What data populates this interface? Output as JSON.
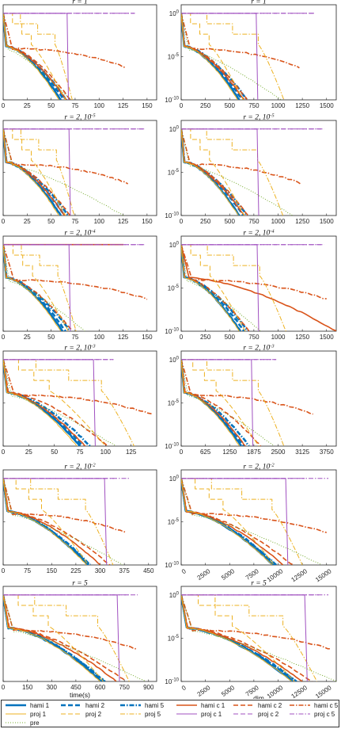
{
  "colors": {
    "hami": "#0072BD",
    "proj": "#EDB120",
    "hamic": "#D95319",
    "projc": "#A050C0",
    "pre": "#77AC30"
  },
  "chart_data": [
    {
      "type": "line",
      "panel": "time",
      "title": "r = 1",
      "xlabel": "",
      "ylabel": "",
      "xlim": [
        0,
        160
      ],
      "xticks": [
        "0",
        "25",
        "50",
        "75",
        "100",
        "125",
        "150"
      ],
      "yscale": "log",
      "ylim": [
        1e-10,
        10
      ],
      "yticks": [
        "10^0",
        "10^-5",
        "10^-10"
      ],
      "show_yticks": false,
      "series": [
        {
          "name": "hami 1",
          "end": 60
        },
        {
          "name": "hami 2",
          "end": 63
        },
        {
          "name": "hami 5",
          "end": 66
        },
        {
          "name": "hami c 1",
          "end": 66
        },
        {
          "name": "hami c 2",
          "end": 70
        },
        {
          "name": "hami c 5",
          "end": 128
        },
        {
          "name": "proj 1",
          "end": 58
        },
        {
          "name": "proj 2",
          "end": 65
        },
        {
          "name": "proj 5",
          "end": 72
        },
        {
          "name": "proj c 1",
          "end": 68
        },
        {
          "name": "proj c 2",
          "end": 140
        },
        {
          "name": "proj c 5",
          "end": 140
        },
        {
          "name": "pre",
          "end": 70
        }
      ]
    },
    {
      "type": "line",
      "panel": "dim",
      "title": "r = 1",
      "xlabel": "",
      "ylabel": "",
      "xlim": [
        0,
        1600
      ],
      "xticks": [
        "0",
        "250",
        "500",
        "750",
        "1000",
        "1250",
        "1500"
      ],
      "yscale": "log",
      "ylim": [
        1e-10,
        10
      ],
      "yticks": [
        "10^0",
        "10^-5",
        "10^-10"
      ],
      "show_yticks": true,
      "series": [
        {
          "name": "hami 1",
          "end": 600
        },
        {
          "name": "hami 2",
          "end": 630
        },
        {
          "name": "hami 5",
          "end": 680
        },
        {
          "name": "hami c 1",
          "end": 650
        },
        {
          "name": "hami c 2",
          "end": 680
        },
        {
          "name": "hami c 5",
          "end": 1220
        },
        {
          "name": "proj 1",
          "end": 580
        },
        {
          "name": "proj 2",
          "end": 640
        },
        {
          "name": "proj 5",
          "end": 1060
        },
        {
          "name": "proj c 1",
          "end": 790
        },
        {
          "name": "proj c 2",
          "end": 1400
        },
        {
          "name": "proj c 5",
          "end": 1400
        },
        {
          "name": "pre",
          "end": 1030
        }
      ]
    },
    {
      "type": "line",
      "panel": "time",
      "title": "r = 2, 10^-5",
      "xlabel": "",
      "ylabel": "",
      "xlim": [
        0,
        160
      ],
      "xticks": [
        "0",
        "25",
        "50",
        "75",
        "100",
        "125",
        "150"
      ],
      "yscale": "log",
      "ylim": [
        1e-10,
        10
      ],
      "yticks": [
        "10^0",
        "10^-5",
        "10^-10"
      ],
      "show_yticks": false,
      "series": [
        {
          "name": "hami 1",
          "end": 60
        },
        {
          "name": "hami 2",
          "end": 64
        },
        {
          "name": "hami 5",
          "end": 68
        },
        {
          "name": "hami c 1",
          "end": 64
        },
        {
          "name": "hami c 2",
          "end": 70
        },
        {
          "name": "hami c 5",
          "end": 130
        },
        {
          "name": "proj 1",
          "end": 58
        },
        {
          "name": "proj 2",
          "end": 65
        },
        {
          "name": "proj 5",
          "end": 74
        },
        {
          "name": "proj c 1",
          "end": 70
        },
        {
          "name": "proj c 2",
          "end": 150
        },
        {
          "name": "proj c 5",
          "end": 150
        },
        {
          "name": "pre",
          "end": 125
        }
      ]
    },
    {
      "type": "line",
      "panel": "dim",
      "title": "r = 2, 10^-5",
      "xlabel": "",
      "ylabel": "",
      "xlim": [
        0,
        1600
      ],
      "xticks": [
        "0",
        "250",
        "500",
        "750",
        "1000",
        "1250",
        "1500"
      ],
      "yscale": "log",
      "ylim": [
        1e-10,
        10
      ],
      "yticks": [
        "10^0",
        "10^-5",
        "10^-10"
      ],
      "show_yticks": true,
      "series": [
        {
          "name": "hami 1",
          "end": 600
        },
        {
          "name": "hami 2",
          "end": 640
        },
        {
          "name": "hami 5",
          "end": 680
        },
        {
          "name": "hami c 1",
          "end": 650
        },
        {
          "name": "hami c 2",
          "end": 690
        },
        {
          "name": "hami c 5",
          "end": 1230
        },
        {
          "name": "proj 1",
          "end": 590
        },
        {
          "name": "proj 2",
          "end": 650
        },
        {
          "name": "proj 5",
          "end": 1050
        },
        {
          "name": "proj c 1",
          "end": 800
        },
        {
          "name": "proj c 2",
          "end": 1500
        },
        {
          "name": "proj c 5",
          "end": 1500
        },
        {
          "name": "pre",
          "end": 1150
        }
      ]
    },
    {
      "type": "line",
      "panel": "time",
      "title": "r = 2, 10^-4",
      "xlabel": "",
      "ylabel": "",
      "xlim": [
        0,
        160
      ],
      "xticks": [
        "0",
        "25",
        "50",
        "75",
        "100",
        "125",
        "150"
      ],
      "yscale": "log",
      "ylim": [
        1e-10,
        10
      ],
      "yticks": [
        "10^0",
        "10^-5",
        "10^-10"
      ],
      "show_yticks": false,
      "series": [
        {
          "name": "hami 1",
          "end": 62
        },
        {
          "name": "hami 2",
          "end": 65
        },
        {
          "name": "hami 5",
          "end": 70
        },
        {
          "name": "hami c 1",
          "end": 128
        },
        {
          "name": "hami c 2",
          "end": 72
        },
        {
          "name": "hami c 5",
          "end": 150
        },
        {
          "name": "proj 1",
          "end": 60
        },
        {
          "name": "proj 2",
          "end": 68
        },
        {
          "name": "proj 5",
          "end": 76
        },
        {
          "name": "proj c 1",
          "end": 70
        },
        {
          "name": "proj c 2",
          "end": 150
        },
        {
          "name": "proj c 5",
          "end": 150
        },
        {
          "name": "pre",
          "end": 85
        }
      ]
    },
    {
      "type": "line",
      "panel": "dim",
      "title": "r = 2, 10^-4",
      "xlabel": "",
      "ylabel": "",
      "xlim": [
        0,
        1600
      ],
      "xticks": [
        "0",
        "250",
        "500",
        "750",
        "1000",
        "1250",
        "1500"
      ],
      "yscale": "log",
      "ylim": [
        1e-10,
        10
      ],
      "yticks": [
        "10^0",
        "10^-5",
        "10^-10"
      ],
      "show_yticks": true,
      "series": [
        {
          "name": "hami 1",
          "end": 610
        },
        {
          "name": "hami 2",
          "end": 650
        },
        {
          "name": "hami 5",
          "end": 690
        },
        {
          "name": "hami c 1",
          "end": 1600
        },
        {
          "name": "hami c 2",
          "end": 700
        },
        {
          "name": "hami c 5",
          "end": 1500
        },
        {
          "name": "proj 1",
          "end": 600
        },
        {
          "name": "proj 2",
          "end": 660
        },
        {
          "name": "proj 5",
          "end": 1080
        },
        {
          "name": "proj c 1",
          "end": 800
        },
        {
          "name": "proj c 2",
          "end": 1500
        },
        {
          "name": "proj c 5",
          "end": 1500
        },
        {
          "name": "pre",
          "end": 820
        }
      ]
    },
    {
      "type": "line",
      "panel": "time",
      "title": "r = 2, 10^-3",
      "xlabel": "",
      "ylabel": "",
      "xlim": [
        0,
        150
      ],
      "xticks": [
        "0",
        "25",
        "50",
        "75",
        "100",
        "125"
      ],
      "yscale": "log",
      "ylim": [
        1e-10,
        10
      ],
      "yticks": [
        "10^0",
        "10^-5",
        "10^-10"
      ],
      "show_yticks": false,
      "series": [
        {
          "name": "hami 1",
          "end": 75
        },
        {
          "name": "hami 2",
          "end": 78
        },
        {
          "name": "hami 5",
          "end": 85
        },
        {
          "name": "hami c 1",
          "end": 80
        },
        {
          "name": "hami c 2",
          "end": 102
        },
        {
          "name": "hami c 5",
          "end": 145
        },
        {
          "name": "proj 1",
          "end": 72
        },
        {
          "name": "proj 2",
          "end": 100
        },
        {
          "name": "proj 5",
          "end": 128
        },
        {
          "name": "proj c 1",
          "end": 90
        },
        {
          "name": "proj c 2",
          "end": 110
        },
        {
          "name": "proj c 5",
          "end": 110
        },
        {
          "name": "pre",
          "end": 110
        }
      ]
    },
    {
      "type": "line",
      "panel": "dim",
      "title": "r = 2, 10^-3",
      "xlabel": "",
      "ylabel": "",
      "xlim": [
        0,
        4000
      ],
      "xticks": [
        "0",
        "625",
        "1250",
        "1875",
        "2500",
        "3125",
        "3750"
      ],
      "yscale": "log",
      "ylim": [
        1e-10,
        10
      ],
      "yticks": [
        "10^0",
        "10^-5",
        "10^-10"
      ],
      "show_yticks": true,
      "series": [
        {
          "name": "hami 1",
          "end": 1550
        },
        {
          "name": "hami 2",
          "end": 1620
        },
        {
          "name": "hami 5",
          "end": 1750
        },
        {
          "name": "hami c 1",
          "end": 1650
        },
        {
          "name": "hami c 2",
          "end": 2050
        },
        {
          "name": "hami c 5",
          "end": 3400
        },
        {
          "name": "proj 1",
          "end": 1500
        },
        {
          "name": "proj 2",
          "end": 2000
        },
        {
          "name": "proj 5",
          "end": 2650
        },
        {
          "name": "proj c 1",
          "end": 1850
        },
        {
          "name": "proj c 2",
          "end": 2500
        },
        {
          "name": "proj c 5",
          "end": 2500
        },
        {
          "name": "pre",
          "end": 2400
        }
      ]
    },
    {
      "type": "line",
      "panel": "time",
      "title": "r = 2, 10^-2",
      "xlabel": "",
      "ylabel": "",
      "xlim": [
        0,
        475
      ],
      "xticks": [
        "0",
        "75",
        "150",
        "225",
        "300",
        "375",
        "450"
      ],
      "yscale": "log",
      "ylim": [
        1e-10,
        10
      ],
      "yticks": [
        "10^0",
        "10^-5",
        "10^-10"
      ],
      "show_yticks": false,
      "series": [
        {
          "name": "hami 1",
          "end": 262
        },
        {
          "name": "hami 2",
          "end": 266
        },
        {
          "name": "hami 5",
          "end": 270
        },
        {
          "name": "hami c 1",
          "end": 300
        },
        {
          "name": "hami c 2",
          "end": 330
        },
        {
          "name": "hami c 5",
          "end": 380
        },
        {
          "name": "proj 1",
          "end": 258
        },
        {
          "name": "proj 2",
          "end": 264
        },
        {
          "name": "proj 5",
          "end": 340
        },
        {
          "name": "proj c 1",
          "end": 320
        },
        {
          "name": "proj c 2",
          "end": 350
        },
        {
          "name": "proj c 5",
          "end": 400
        },
        {
          "name": "pre",
          "end": 370
        }
      ]
    },
    {
      "type": "line",
      "panel": "dim",
      "title": "r = 2, 10^-2",
      "xlabel": "",
      "ylabel": "",
      "xlim": [
        0,
        16000
      ],
      "xticks": [
        "0",
        "2500",
        "5000",
        "7500",
        "10000",
        "12500",
        "15000"
      ],
      "yscale": "log",
      "ylim": [
        1e-10,
        10
      ],
      "yticks": [
        "10^0",
        "10^-5",
        "10^-10"
      ],
      "show_yticks": true,
      "series": [
        {
          "name": "hami 1",
          "end": 9500
        },
        {
          "name": "hami 2",
          "end": 9700
        },
        {
          "name": "hami 5",
          "end": 9800
        },
        {
          "name": "hami c 1",
          "end": 10500
        },
        {
          "name": "hami c 2",
          "end": 11500
        },
        {
          "name": "hami c 5",
          "end": 15000
        },
        {
          "name": "proj 1",
          "end": 9400
        },
        {
          "name": "proj 2",
          "end": 9600
        },
        {
          "name": "proj 5",
          "end": 12500
        },
        {
          "name": "proj c 1",
          "end": 11000
        },
        {
          "name": "proj c 2",
          "end": 13000
        },
        {
          "name": "proj c 5",
          "end": 15500
        },
        {
          "name": "pre",
          "end": 14500
        }
      ]
    },
    {
      "type": "line",
      "panel": "time",
      "title": "r = 5",
      "xlabel": "time(s)",
      "ylabel": "",
      "xlim": [
        0,
        950
      ],
      "xticks": [
        "0",
        "150",
        "300",
        "450",
        "600",
        "750",
        "900"
      ],
      "yscale": "log",
      "ylim": [
        1e-10,
        10
      ],
      "yticks": [
        "10^0",
        "10^-5",
        "10^-10"
      ],
      "show_yticks": false,
      "series": [
        {
          "name": "hami 1",
          "end": 610
        },
        {
          "name": "hami 2",
          "end": 625
        },
        {
          "name": "hami 5",
          "end": 630
        },
        {
          "name": "hami c 1",
          "end": 700
        },
        {
          "name": "hami c 2",
          "end": 760
        },
        {
          "name": "hami c 5",
          "end": 830
        },
        {
          "name": "proj 1",
          "end": 600
        },
        {
          "name": "proj 2",
          "end": 620
        },
        {
          "name": "proj 5",
          "end": 780
        },
        {
          "name": "proj c 1",
          "end": 720
        },
        {
          "name": "proj c 2",
          "end": 790
        },
        {
          "name": "proj c 5",
          "end": 850
        },
        {
          "name": "pre",
          "end": 880
        }
      ]
    },
    {
      "type": "line",
      "panel": "dim",
      "title": "r = 5",
      "xlabel": "dim",
      "ylabel": "",
      "xlim": [
        0,
        16000
      ],
      "xticks": [
        "0",
        "2500",
        "5000",
        "7500",
        "10000",
        "12500",
        "15000"
      ],
      "yscale": "log",
      "ylim": [
        1e-10,
        10
      ],
      "yticks": [
        "10^0",
        "10^-5",
        "10^-10"
      ],
      "show_yticks": true,
      "series": [
        {
          "name": "hami 1",
          "end": 11500
        },
        {
          "name": "hami 2",
          "end": 11800
        },
        {
          "name": "hami 5",
          "end": 11900
        },
        {
          "name": "hami c 1",
          "end": 12500
        },
        {
          "name": "hami c 2",
          "end": 13500
        },
        {
          "name": "hami c 5",
          "end": 15500
        },
        {
          "name": "proj 1",
          "end": 11400
        },
        {
          "name": "proj 2",
          "end": 11700
        },
        {
          "name": "proj 5",
          "end": 14000
        },
        {
          "name": "proj c 1",
          "end": 13000
        },
        {
          "name": "proj c 2",
          "end": 14500
        },
        {
          "name": "proj c 5",
          "end": 15500
        },
        {
          "name": "pre",
          "end": 16000
        }
      ]
    }
  ],
  "legend": {
    "items": [
      {
        "label": "hami 1",
        "color": "#0072BD",
        "dash": "",
        "width": 2.6
      },
      {
        "label": "hami 2",
        "color": "#0072BD",
        "dash": "6,3",
        "width": 2.6
      },
      {
        "label": "hami 5",
        "color": "#0072BD",
        "dash": "6,2,1.5,2",
        "width": 2.6
      },
      {
        "label": "hami c 1",
        "color": "#D95319",
        "dash": "",
        "width": 1.6
      },
      {
        "label": "hami c 2",
        "color": "#D95319",
        "dash": "6,3",
        "width": 1.6
      },
      {
        "label": "hami c 5",
        "color": "#D95319",
        "dash": "6,2,1.5,2",
        "width": 1.6
      },
      {
        "label": "proj 1",
        "color": "#EDB120",
        "dash": "",
        "width": 1
      },
      {
        "label": "proj 2",
        "color": "#EDB120",
        "dash": "6,3",
        "width": 1
      },
      {
        "label": "proj 5",
        "color": "#EDB120",
        "dash": "6,2,1.5,2",
        "width": 1
      },
      {
        "label": "proj c 1",
        "color": "#A050C0",
        "dash": "",
        "width": 1
      },
      {
        "label": "proj c 2",
        "color": "#A050C0",
        "dash": "6,3",
        "width": 1
      },
      {
        "label": "proj c 5",
        "color": "#A050C0",
        "dash": "6,2,1.5,2",
        "width": 1
      },
      {
        "label": "pre",
        "color": "#77AC30",
        "dash": "1,2",
        "width": 1
      }
    ]
  }
}
